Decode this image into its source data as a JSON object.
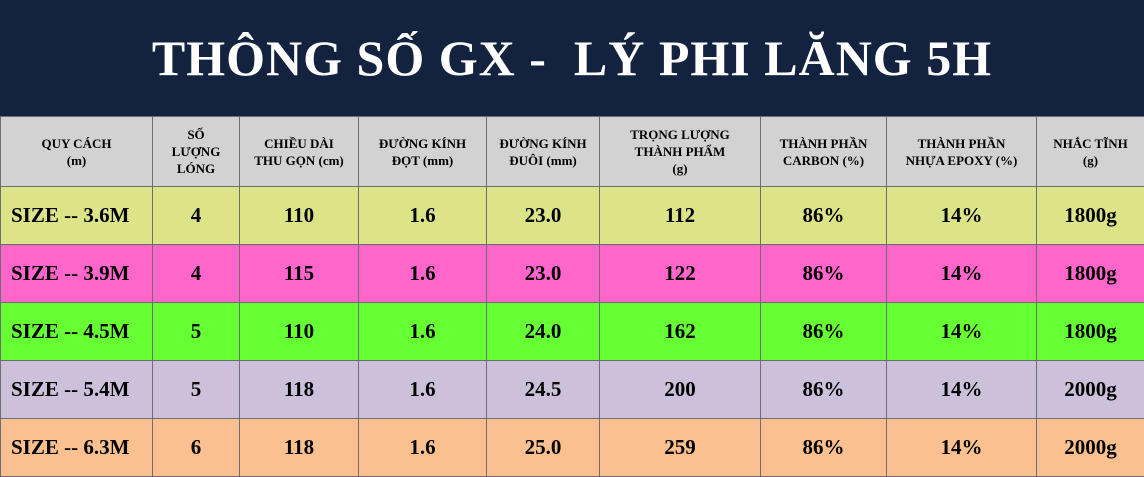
{
  "title": "THÔNG SỐ GX -  LÝ PHI LĂNG 5H",
  "headers": [
    [
      "QUY CÁCH",
      "(m)"
    ],
    [
      "SỐ",
      "LƯỢNG",
      "LÓNG"
    ],
    [
      "CHIỀU DÀI",
      "THU GỌN (cm)"
    ],
    [
      "ĐƯỜNG KÍNH",
      "ĐỌT (mm)"
    ],
    [
      "ĐƯỜNG KÍNH",
      "ĐUÔI (mm)"
    ],
    [
      "TRỌNG LƯỢNG",
      "THÀNH PHẨM",
      "(g)"
    ],
    [
      "THÀNH PHẦN",
      "CARBON (%)"
    ],
    [
      "THÀNH PHẦN",
      "NHỰA EPOXY (%)"
    ],
    [
      "NHẮC TĨNH",
      "(g)"
    ]
  ],
  "rows": [
    {
      "color": "#dce487",
      "cells": [
        "SIZE -- 3.6M",
        "4",
        "110",
        "1.6",
        "23.0",
        "112",
        "86%",
        "14%",
        "1800g"
      ]
    },
    {
      "color": "#ff66cc",
      "cells": [
        "SIZE -- 3.9M",
        "4",
        "115",
        "1.6",
        "23.0",
        "122",
        "86%",
        "14%",
        "1800g"
      ]
    },
    {
      "color": "#66ff33",
      "cells": [
        "SIZE -- 4.5M",
        "5",
        "110",
        "1.6",
        "24.0",
        "162",
        "86%",
        "14%",
        "1800g"
      ]
    },
    {
      "color": "#ccc0da",
      "cells": [
        "SIZE -- 5.4M",
        "5",
        "118",
        "1.6",
        "24.5",
        "200",
        "86%",
        "14%",
        "2000g"
      ]
    },
    {
      "color": "#fac08f",
      "cells": [
        "SIZE -- 6.3M",
        "6",
        "118",
        "1.6",
        "25.0",
        "259",
        "86%",
        "14%",
        "2000g"
      ]
    }
  ]
}
